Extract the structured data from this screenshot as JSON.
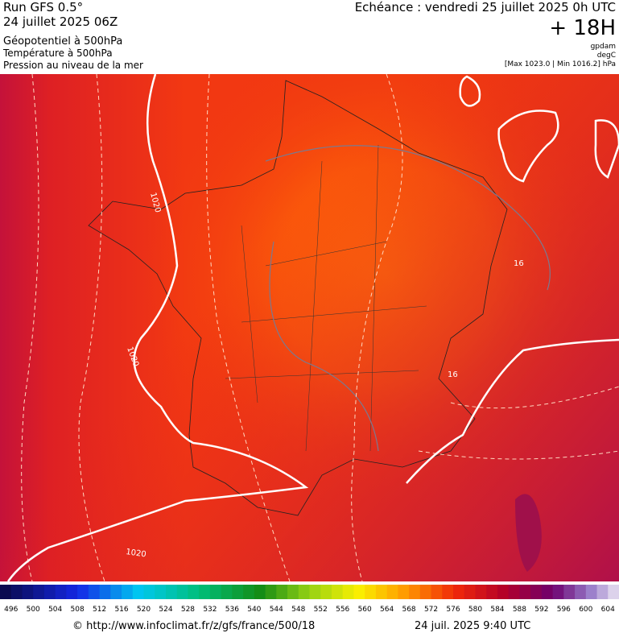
{
  "header": {
    "run": "Run GFS 0.5°",
    "run_date": "24 juillet 2025 06Z",
    "fields": [
      "Géopotentiel à 500hPa",
      "Température à 500hPa",
      "Pression au niveau de la mer"
    ],
    "echeance": "Echéance : vendredi 25 juillet 2025 0h UTC",
    "lead": "+ 18H",
    "units": [
      "gpdam",
      "degC",
      "[Max 1023.0 | Min 1016.2] hPa"
    ]
  },
  "map_labels": [
    "1020",
    "1020",
    "1020",
    "16",
    "16"
  ],
  "scale": [
    496,
    500,
    504,
    508,
    512,
    516,
    520,
    524,
    528,
    532,
    536,
    540,
    544,
    548,
    552,
    556,
    560,
    564,
    568,
    572,
    576,
    580,
    584,
    588,
    592,
    596,
    600,
    604
  ],
  "footer": {
    "source": "© http://www.infoclimat.fr/z/gfs/france/500/18",
    "timestamp": "24 juil. 2025  9:40 UTC"
  }
}
